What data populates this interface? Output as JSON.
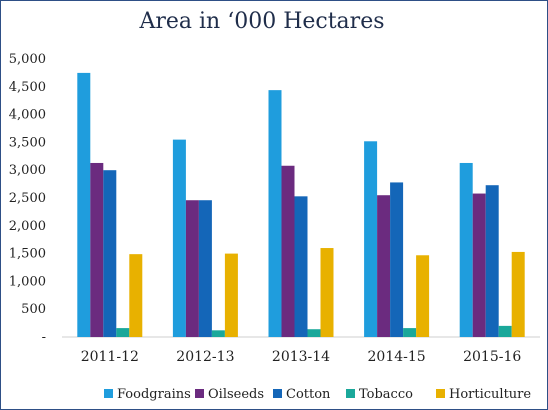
{
  "chart_data": {
    "type": "bar",
    "title": "Area in ‘000 Hectares",
    "xlabel": "",
    "ylabel": "",
    "categories": [
      "2011-12",
      "2012-13",
      "2013-14",
      "2014-15",
      "2015-16"
    ],
    "series": [
      {
        "name": "Foodgrains",
        "color": "#1f9ddd",
        "values": [
          4750,
          3550,
          4440,
          3520,
          3130
        ]
      },
      {
        "name": "Oilseeds",
        "color": "#6b2b7f",
        "values": [
          3130,
          2460,
          3080,
          2550,
          2580
        ]
      },
      {
        "name": "Cotton",
        "color": "#1466b8",
        "values": [
          3000,
          2460,
          2530,
          2780,
          2730
        ]
      },
      {
        "name": "Tobacco",
        "color": "#1aa89a",
        "values": [
          160,
          120,
          140,
          160,
          200
        ]
      },
      {
        "name": "Horticulture",
        "color": "#e8b100",
        "values": [
          1490,
          1500,
          1600,
          1470,
          1530
        ]
      }
    ],
    "ylim": [
      0,
      5000
    ],
    "yticks": [
      0,
      500,
      1000,
      1500,
      2000,
      2500,
      3000,
      3500,
      4000,
      4500,
      5000
    ],
    "ytick_labels": [
      "-",
      "500",
      "1,000",
      "1,500",
      "2,000",
      "2,500",
      "3,000",
      "3,500",
      "4,000",
      "4,500",
      "5,000"
    ],
    "grid": false,
    "legend_position": "bottom"
  }
}
